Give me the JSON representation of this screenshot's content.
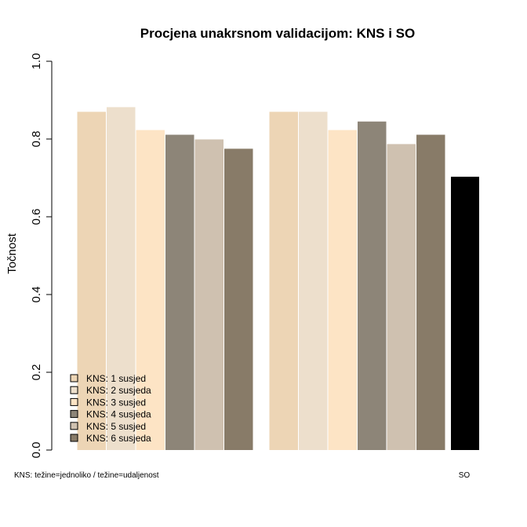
{
  "chart_data": {
    "type": "bar",
    "title": "Procjena unakrsnom validacijom: KNS i SO",
    "ylabel": "Točnost",
    "xlabel": "",
    "ylim": [
      0,
      1
    ],
    "yticks": [
      "0.0",
      "0.2",
      "0.4",
      "0.6",
      "0.8",
      "1.0"
    ],
    "grid": false,
    "legend_position": "bottom-left",
    "categories": [
      "KNS: težine=jednoliko / težine=udaljenost",
      "SO"
    ],
    "series": [
      {
        "name": "KNS: 1 susjed",
        "color": "#EDD5B5",
        "values": [
          0.87,
          0.87
        ]
      },
      {
        "name": "KNS: 2 susjeda",
        "color": "#EDDFCC",
        "values": [
          0.882,
          0.87
        ]
      },
      {
        "name": "KNS: 3 susjed",
        "color": "#FDE4C5",
        "values": [
          0.823,
          0.823
        ]
      },
      {
        "name": "KNS: 4 susjeda",
        "color": "#8D8578",
        "values": [
          0.811,
          0.845
        ]
      },
      {
        "name": "KNS: 5 susjed",
        "color": "#CFC1B0",
        "values": [
          0.799,
          0.787
        ]
      },
      {
        "name": "KNS: 6 susjeda",
        "color": "#887B68",
        "values": [
          0.775,
          0.811
        ]
      }
    ],
    "so": {
      "label": "SO",
      "value": 0.703,
      "color": "#000000"
    }
  }
}
